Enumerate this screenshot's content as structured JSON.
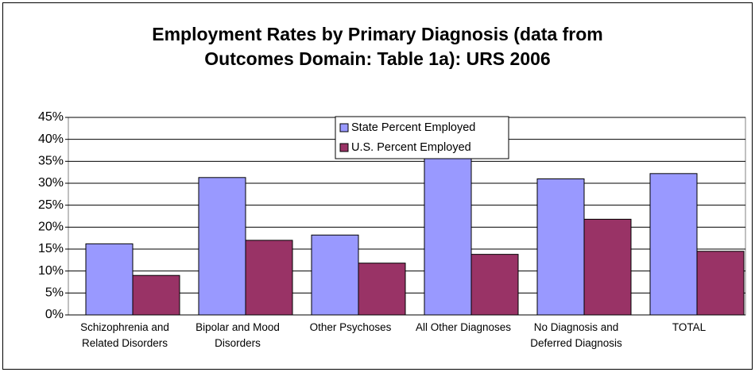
{
  "chart_data": {
    "type": "bar",
    "title": "Employment Rates by Primary Diagnosis (data from Outcomes Domain: Table 1a): URS 2006",
    "categories": [
      "Schizophrenia and Related Disorders",
      "Bipolar and Mood Disorders",
      "Other Psychoses",
      "All Other Diagnoses",
      "No Diagnosis and Deferred Diagnosis",
      "TOTAL"
    ],
    "series": [
      {
        "name": "State Percent Employed",
        "color": "#9999ff",
        "values": [
          16.2,
          31.3,
          18.2,
          37,
          31,
          32.2
        ]
      },
      {
        "name": "U.S. Percent Employed",
        "color": "#993366",
        "values": [
          9,
          17,
          11.8,
          13.8,
          21.8,
          14.5
        ]
      }
    ],
    "ylim": [
      0,
      45
    ],
    "yticks": [
      {
        "value": 0,
        "label": "0%"
      },
      {
        "value": 5,
        "label": "5%"
      },
      {
        "value": 10,
        "label": "10%"
      },
      {
        "value": 15,
        "label": "15%"
      },
      {
        "value": 20,
        "label": "20%"
      },
      {
        "value": 25,
        "label": "25%"
      },
      {
        "value": 30,
        "label": "30%"
      },
      {
        "value": 35,
        "label": "35%"
      },
      {
        "value": 40,
        "label": "40%"
      },
      {
        "value": 45,
        "label": "45%"
      }
    ],
    "grid": true
  }
}
